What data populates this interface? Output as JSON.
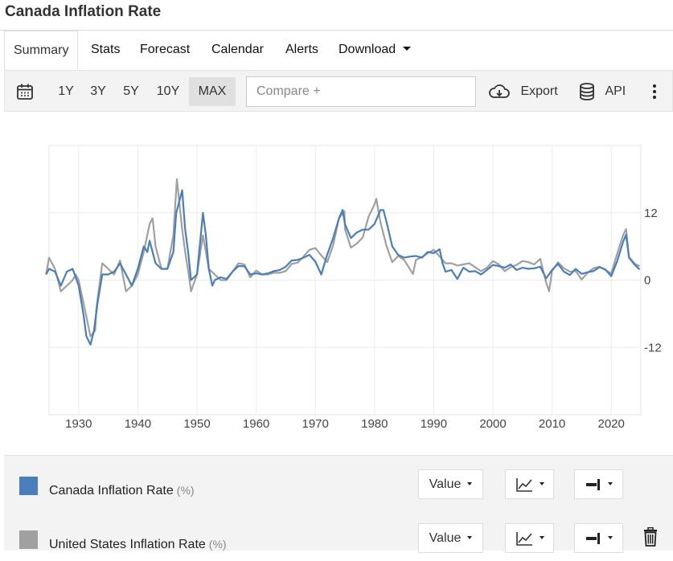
{
  "page": {
    "title": "Canada Inflation Rate"
  },
  "tabs": [
    {
      "label": "Summary"
    },
    {
      "label": "Stats"
    },
    {
      "label": "Forecast"
    },
    {
      "label": "Calendar"
    },
    {
      "label": "Alerts"
    },
    {
      "label": "Download"
    }
  ],
  "toolbar": {
    "ranges": [
      "1Y",
      "3Y",
      "5Y",
      "10Y",
      "MAX"
    ],
    "active_range": "MAX",
    "compare_placeholder": "Compare +",
    "export_label": "Export",
    "api_label": "API",
    "icons": [
      "calendar-icon",
      "cloud-download-icon",
      "database-icon",
      "more-vertical-icon",
      "trash-icon"
    ]
  },
  "chart_data": {
    "type": "line",
    "title": "",
    "xlabel": "",
    "ylabel": "",
    "x_ticks": [
      1930,
      1940,
      1950,
      1960,
      1970,
      1980,
      1990,
      2000,
      2010,
      2020
    ],
    "y_ticks": [
      12,
      0,
      -12
    ],
    "xlim": [
      1925,
      2025
    ],
    "ylim": [
      -24,
      24
    ],
    "grid": true,
    "y_axis_side": "right",
    "series": [
      {
        "name": "Canada Inflation Rate",
        "color": "#4a7ebb",
        "x": [
          1924.5,
          1925,
          1926,
          1927,
          1928,
          1929,
          1930,
          1930.8,
          1931.3,
          1932,
          1932.6,
          1933.2,
          1934,
          1935,
          1936,
          1937,
          1938,
          1939,
          1940,
          1941,
          1941.6,
          1942,
          1943,
          1944,
          1945,
          1946,
          1946.5,
          1947,
          1947.5,
          1948,
          1948.5,
          1949,
          1950,
          1951,
          1951.5,
          1952,
          1952.6,
          1953,
          1954,
          1955,
          1956,
          1957,
          1958,
          1959,
          1960,
          1961,
          1962,
          1963,
          1964,
          1965,
          1966,
          1967,
          1968,
          1969,
          1970,
          1971,
          1972,
          1973,
          1974,
          1974.6,
          1975,
          1976,
          1977,
          1978,
          1979,
          1980,
          1981,
          1981.5,
          1982,
          1983,
          1984,
          1985,
          1986,
          1987,
          1988,
          1989,
          1990,
          1991,
          1991.5,
          1992,
          1993,
          1994,
          1995,
          1996,
          1997,
          1998,
          1999,
          2000,
          2001,
          2002,
          2003,
          2004,
          2005,
          2006,
          2007,
          2008,
          2009,
          2010,
          2011,
          2012,
          2013,
          2014,
          2015,
          2016,
          2017,
          2018,
          2019,
          2020,
          2021,
          2022,
          2022.5,
          2023,
          2024,
          2024.8
        ],
        "y": [
          1,
          2,
          1.5,
          -1,
          1.5,
          2,
          -1,
          -6,
          -10,
          -11.5,
          -9,
          -4,
          1,
          1,
          1.5,
          3,
          1,
          -1,
          2,
          6,
          5,
          7,
          3,
          2,
          2,
          5,
          12,
          14,
          16,
          9,
          5,
          0,
          1,
          12,
          8,
          2,
          -1,
          0,
          0.5,
          0.2,
          1.5,
          2.5,
          2.5,
          1,
          1.2,
          1,
          1.2,
          1.6,
          1.8,
          2.4,
          3.5,
          3.6,
          4,
          4.5,
          3.3,
          1,
          4.5,
          7.5,
          11,
          12.5,
          10,
          7.5,
          8.5,
          9,
          9,
          10,
          12.5,
          12.5,
          10.5,
          6,
          4.5,
          4,
          4.2,
          4.3,
          4,
          5,
          4.8,
          5.5,
          3,
          1.5,
          1.8,
          0.2,
          2.2,
          1.5,
          1.6,
          1,
          1.8,
          2.7,
          2.5,
          2.2,
          2.8,
          1.8,
          2.2,
          2,
          2.1,
          2.4,
          0.3,
          1.8,
          2.9,
          1.5,
          0.9,
          2,
          1.1,
          1.4,
          1.6,
          2.3,
          1.9,
          0.7,
          3.4,
          6.8,
          8.1,
          4,
          2.7,
          1.9
        ]
      },
      {
        "name": "United States Inflation Rate",
        "color": "#a0a0a0",
        "x": [
          1924.5,
          1925,
          1926,
          1927,
          1928,
          1929,
          1929.5,
          1930,
          1930.6,
          1931,
          1932,
          1932.8,
          1933,
          1934,
          1935,
          1936,
          1937,
          1938,
          1939,
          1940,
          1941,
          1942,
          1942.5,
          1943,
          1944,
          1945,
          1946,
          1946.6,
          1947,
          1947.5,
          1948,
          1948.6,
          1949,
          1950,
          1951,
          1952,
          1953,
          1954,
          1955,
          1956,
          1957,
          1958,
          1959,
          1960,
          1961,
          1962,
          1963,
          1964,
          1965,
          1966,
          1967,
          1968,
          1969,
          1970,
          1971,
          1972,
          1973,
          1974,
          1974.9,
          1975,
          1976,
          1977,
          1978,
          1979,
          1980,
          1980.3,
          1981,
          1982,
          1983,
          1984,
          1985,
          1986,
          1986.5,
          1987,
          1988,
          1989,
          1990,
          1991,
          1992,
          1993,
          1994,
          1995,
          1996,
          1997,
          1998,
          1999,
          2000,
          2001,
          2002,
          2003,
          2004,
          2005,
          2006,
          2007,
          2008,
          2009,
          2009.5,
          2010,
          2011,
          2012,
          2013,
          2014,
          2015,
          2016,
          2017,
          2018,
          2019,
          2020,
          2021,
          2022,
          2022.5,
          2023,
          2024,
          2024.8
        ],
        "y": [
          1,
          4,
          2,
          -2,
          -1,
          0,
          1,
          0,
          -3,
          -5,
          -10,
          -9,
          -5,
          3,
          2,
          1,
          3.5,
          -2,
          -1,
          1,
          5,
          10,
          11,
          6,
          2,
          2,
          8,
          18,
          14,
          9,
          5,
          1,
          -2,
          1,
          8,
          2,
          1,
          0,
          0,
          1.5,
          3,
          2.8,
          0.5,
          1.7,
          1,
          1,
          1.3,
          1.3,
          1.6,
          2.9,
          3.1,
          4.2,
          5.4,
          5.7,
          4.4,
          3.2,
          6.2,
          11,
          12.3,
          9.1,
          5.8,
          6.5,
          7.6,
          11.3,
          13.5,
          14.5,
          10.3,
          6.2,
          3.2,
          4.3,
          3.6,
          1.9,
          1.1,
          3.6,
          4.1,
          4.8,
          5.4,
          4.2,
          3,
          3,
          2.6,
          2.8,
          3,
          2.3,
          1.6,
          2.2,
          3.4,
          2.8,
          1.6,
          2.3,
          2.7,
          3.4,
          3.2,
          2.8,
          3.8,
          -0.4,
          -2,
          1.6,
          3.2,
          2.1,
          1.5,
          1.6,
          0.1,
          1.3,
          2.1,
          2.4,
          1.8,
          1.2,
          4.7,
          8,
          9.1,
          4.1,
          2.9,
          2.5
        ]
      }
    ]
  },
  "legend": {
    "rows": [
      {
        "label": "Canada Inflation Rate",
        "unit": "(%)",
        "color": "#4a7ebb",
        "value_label": "Value"
      },
      {
        "label": "United States Inflation Rate",
        "unit": "(%)",
        "color": "#a0a0a0",
        "value_label": "Value"
      }
    ]
  }
}
